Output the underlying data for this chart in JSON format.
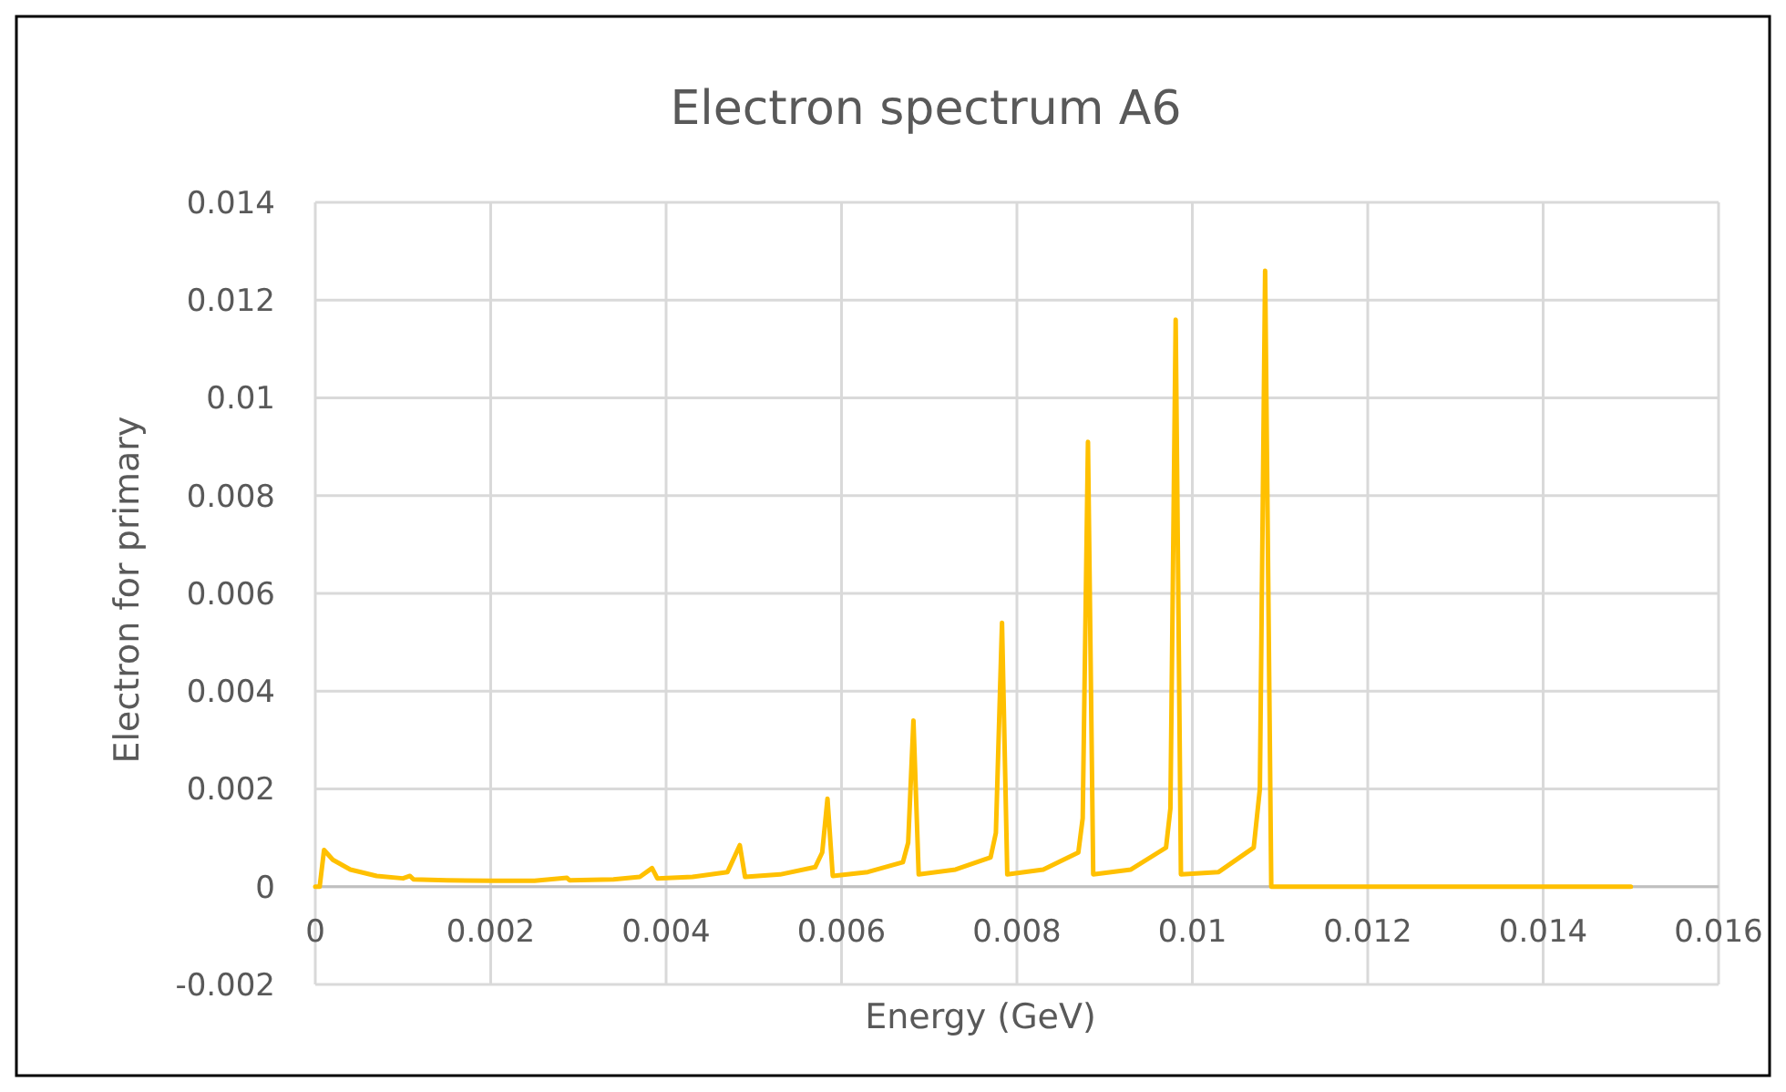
{
  "chart_data": {
    "type": "line",
    "title": "Electron spectrum A6",
    "xlabel": "Energy (GeV)",
    "ylabel": "Electron for primary",
    "xlim": [
      0,
      0.016
    ],
    "ylim": [
      -0.002,
      0.014
    ],
    "xticks": [
      0,
      0.002,
      0.004,
      0.006,
      0.008,
      0.01,
      0.012,
      0.014,
      0.016
    ],
    "yticks": [
      -0.002,
      0,
      0.002,
      0.004,
      0.006,
      0.008,
      0.01,
      0.012,
      0.014
    ],
    "grid": true,
    "marker": "none",
    "line_style": "solid",
    "series": [
      {
        "color": "#ffc000",
        "x": [
          0,
          5e-05,
          0.0001,
          0.0002,
          0.0004,
          0.0007,
          0.001,
          0.00108,
          0.00112,
          0.0015,
          0.002,
          0.0025,
          0.00287,
          0.0029,
          0.0034,
          0.0037,
          0.00384,
          0.0039,
          0.0043,
          0.0047,
          0.00484,
          0.0049,
          0.0053,
          0.0057,
          0.00578,
          0.00584,
          0.0059,
          0.0063,
          0.0067,
          0.00676,
          0.00682,
          0.00688,
          0.0073,
          0.0077,
          0.00776,
          0.00783,
          0.00789,
          0.0083,
          0.0087,
          0.00875,
          0.00881,
          0.00887,
          0.0093,
          0.0097,
          0.00975,
          0.00981,
          0.00987,
          0.0103,
          0.0107,
          0.01077,
          0.01083,
          0.0109,
          0.015
        ],
        "values": [
          0,
          0,
          0.00075,
          0.00055,
          0.00035,
          0.00022,
          0.00017,
          0.00022,
          0.00015,
          0.00013,
          0.00012,
          0.00012,
          0.00018,
          0.00013,
          0.00015,
          0.0002,
          0.00038,
          0.00017,
          0.0002,
          0.0003,
          0.00085,
          0.0002,
          0.00025,
          0.0004,
          0.0007,
          0.0018,
          0.00022,
          0.0003,
          0.0005,
          0.0009,
          0.0034,
          0.00025,
          0.00035,
          0.0006,
          0.0011,
          0.0054,
          0.00025,
          0.00035,
          0.0007,
          0.0014,
          0.0091,
          0.00025,
          0.00035,
          0.0008,
          0.0016,
          0.0116,
          0.00025,
          0.0003,
          0.0008,
          0.002,
          0.0126,
          0,
          0
        ]
      }
    ]
  }
}
